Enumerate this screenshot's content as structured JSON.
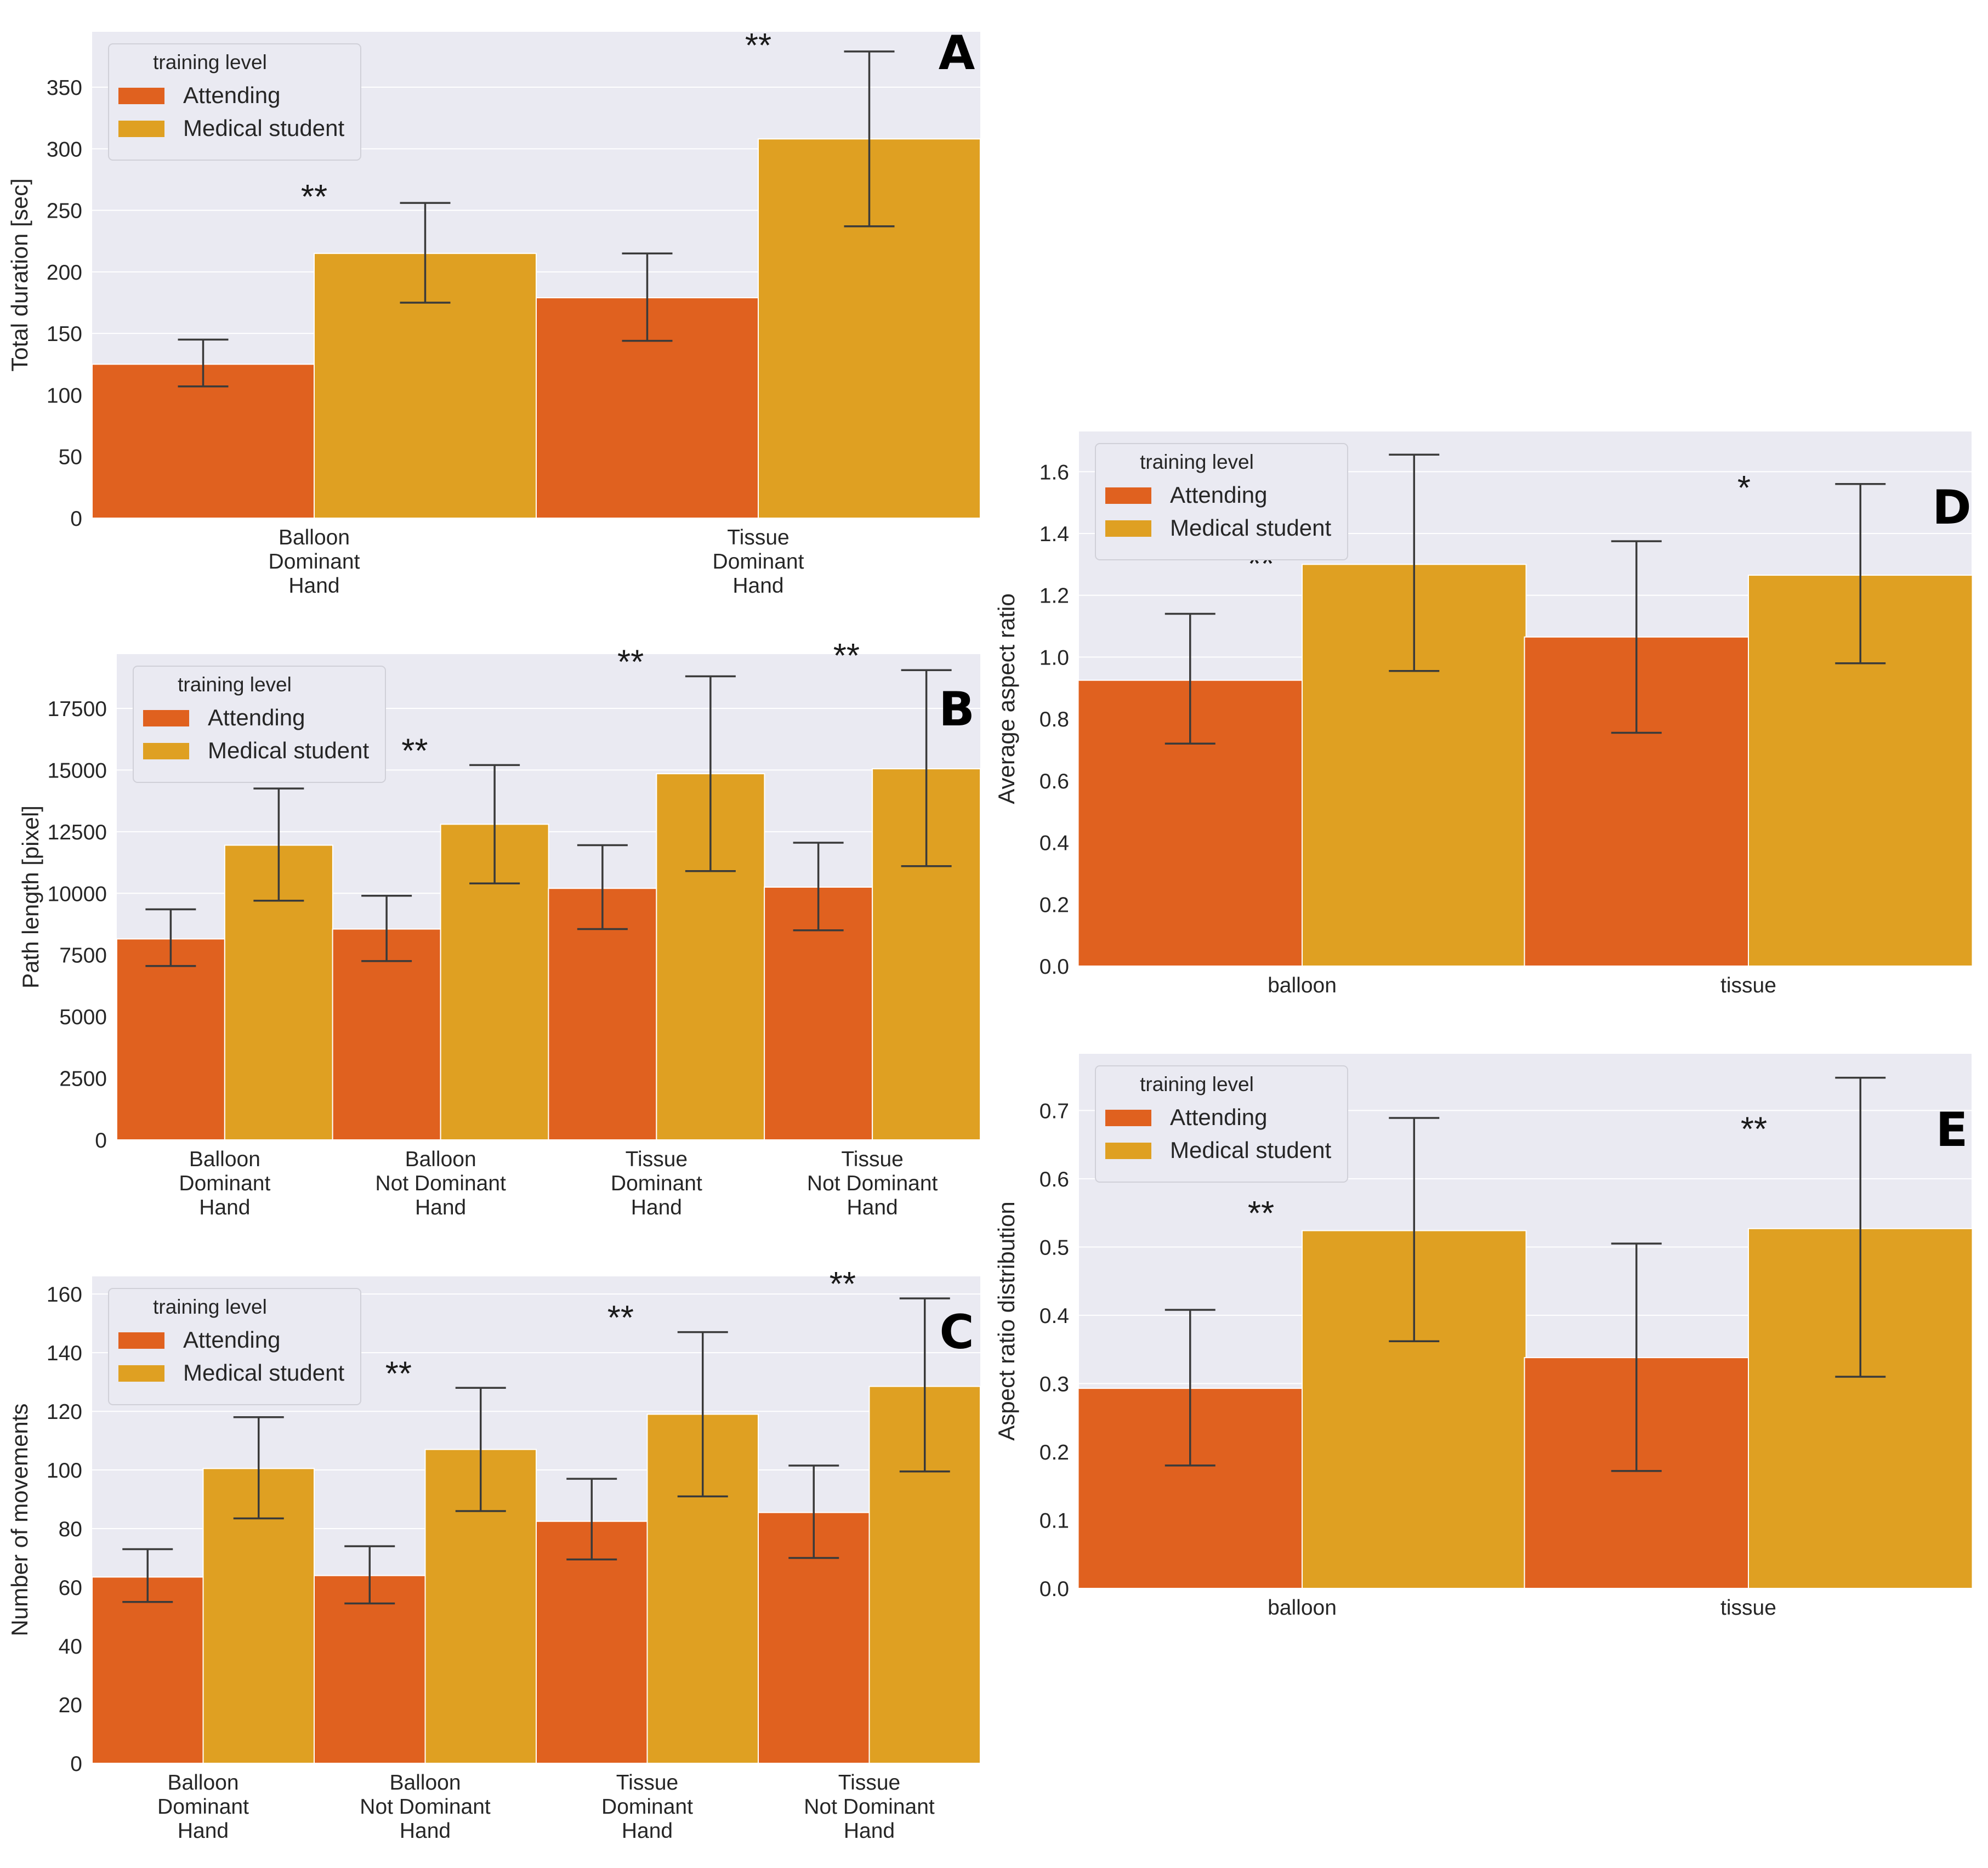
{
  "legend": {
    "title": "training level",
    "entries": [
      "Attending",
      "Medical student"
    ]
  },
  "colors": {
    "attending": "#e0611f",
    "student": "#dfa022",
    "panel_bg": "#eaeaf2",
    "grid": "#ffffff",
    "errorbar": "#3a3a3a"
  },
  "chart_data": [
    {
      "id": "A",
      "panel_label": "A",
      "type": "bar",
      "ylabel": "Total duration [sec]",
      "ylim": [
        0,
        395
      ],
      "yticks": [
        0,
        50,
        100,
        150,
        200,
        250,
        300,
        350
      ],
      "categories": [
        [
          "Balloon",
          "Dominant",
          "Hand"
        ],
        [
          "Tissue",
          "Dominant",
          "Hand"
        ]
      ],
      "series": [
        {
          "name": "Attending",
          "values": [
            125,
            179
          ],
          "err_low": [
            107,
            144
          ],
          "err_high": [
            145,
            215
          ]
        },
        {
          "name": "Medical student",
          "values": [
            215,
            308
          ],
          "err_low": [
            175,
            237
          ],
          "err_high": [
            256,
            379
          ]
        }
      ],
      "significance": [
        "**",
        "**"
      ],
      "legend_position": "top-left"
    },
    {
      "id": "B",
      "panel_label": "B",
      "type": "bar",
      "ylabel": "Path length [pixel]",
      "ylim": [
        0,
        19700
      ],
      "yticks": [
        0,
        2500,
        5000,
        7500,
        10000,
        12500,
        15000,
        17500
      ],
      "categories": [
        [
          "Balloon",
          "Dominant",
          "Hand"
        ],
        [
          "Balloon",
          "Not Dominant",
          "Hand"
        ],
        [
          "Tissue",
          "Dominant",
          "Hand"
        ],
        [
          "Tissue",
          "Not Dominant",
          "Hand"
        ]
      ],
      "series": [
        {
          "name": "Attending",
          "values": [
            8150,
            8550,
            10200,
            10250
          ],
          "err_low": [
            7050,
            7250,
            8550,
            8500
          ],
          "err_high": [
            9350,
            9900,
            11950,
            12050
          ]
        },
        {
          "name": "Medical student",
          "values": [
            11950,
            12800,
            14850,
            15050
          ],
          "err_low": [
            9700,
            10400,
            10900,
            11100
          ],
          "err_high": [
            14250,
            15200,
            18800,
            19050
          ]
        }
      ],
      "significance": [
        "**",
        "**",
        "**",
        "**"
      ],
      "legend_position": "top-left"
    },
    {
      "id": "C",
      "panel_label": "C",
      "type": "bar",
      "ylabel": "Number of movements",
      "ylim": [
        0,
        166
      ],
      "yticks": [
        0,
        20,
        40,
        60,
        80,
        100,
        120,
        140,
        160
      ],
      "categories": [
        [
          "Balloon",
          "Dominant",
          "Hand"
        ],
        [
          "Balloon",
          "Not Dominant",
          "Hand"
        ],
        [
          "Tissue",
          "Dominant",
          "Hand"
        ],
        [
          "Tissue",
          "Not Dominant",
          "Hand"
        ]
      ],
      "series": [
        {
          "name": "Attending",
          "values": [
            63.5,
            64,
            82.5,
            85.5
          ],
          "err_low": [
            55,
            54.5,
            69.5,
            70
          ],
          "err_high": [
            73,
            74,
            97,
            101.5
          ]
        },
        {
          "name": "Medical student",
          "values": [
            100.5,
            107,
            119,
            128.5
          ],
          "err_low": [
            83.5,
            86,
            91,
            99.5
          ],
          "err_high": [
            118,
            128,
            147,
            158.5
          ]
        }
      ],
      "significance": [
        "**",
        "**",
        "**",
        "**"
      ],
      "legend_position": "top-left"
    },
    {
      "id": "D",
      "panel_label": "D",
      "type": "bar",
      "ylabel": "Average aspect ratio",
      "ylim": [
        0,
        1.73
      ],
      "yticks": [
        0.0,
        0.2,
        0.4,
        0.6,
        0.8,
        1.0,
        1.2,
        1.4,
        1.6
      ],
      "ytick_labels": [
        "0.0",
        "0.2",
        "0.4",
        "0.6",
        "0.8",
        "1.0",
        "1.2",
        "1.4",
        "1.6"
      ],
      "categories": [
        [
          "balloon"
        ],
        [
          "tissue"
        ]
      ],
      "series": [
        {
          "name": "Attending",
          "values": [
            0.925,
            1.065
          ],
          "err_low": [
            0.72,
            0.755
          ],
          "err_high": [
            1.14,
            1.375
          ]
        },
        {
          "name": "Medical student",
          "values": [
            1.3,
            1.265
          ],
          "err_low": [
            0.955,
            0.98
          ],
          "err_high": [
            1.655,
            1.56
          ]
        }
      ],
      "significance": [
        "**",
        "*"
      ],
      "legend_position": "top-left"
    },
    {
      "id": "E",
      "panel_label": "E",
      "type": "bar",
      "ylabel": "Aspect ratio distribution",
      "ylim": [
        0,
        0.783
      ],
      "yticks": [
        0.0,
        0.1,
        0.2,
        0.3,
        0.4,
        0.5,
        0.6,
        0.7
      ],
      "ytick_labels": [
        "0.0",
        "0.1",
        "0.2",
        "0.3",
        "0.4",
        "0.5",
        "0.6",
        "0.7"
      ],
      "categories": [
        [
          "balloon"
        ],
        [
          "tissue"
        ]
      ],
      "series": [
        {
          "name": "Attending",
          "values": [
            0.293,
            0.338
          ],
          "err_low": [
            0.18,
            0.172
          ],
          "err_high": [
            0.408,
            0.505
          ]
        },
        {
          "name": "Medical student",
          "values": [
            0.524,
            0.527
          ],
          "err_low": [
            0.362,
            0.31
          ],
          "err_high": [
            0.689,
            0.748
          ]
        }
      ],
      "significance": [
        "**",
        "**"
      ],
      "legend_position": "top-left"
    }
  ]
}
